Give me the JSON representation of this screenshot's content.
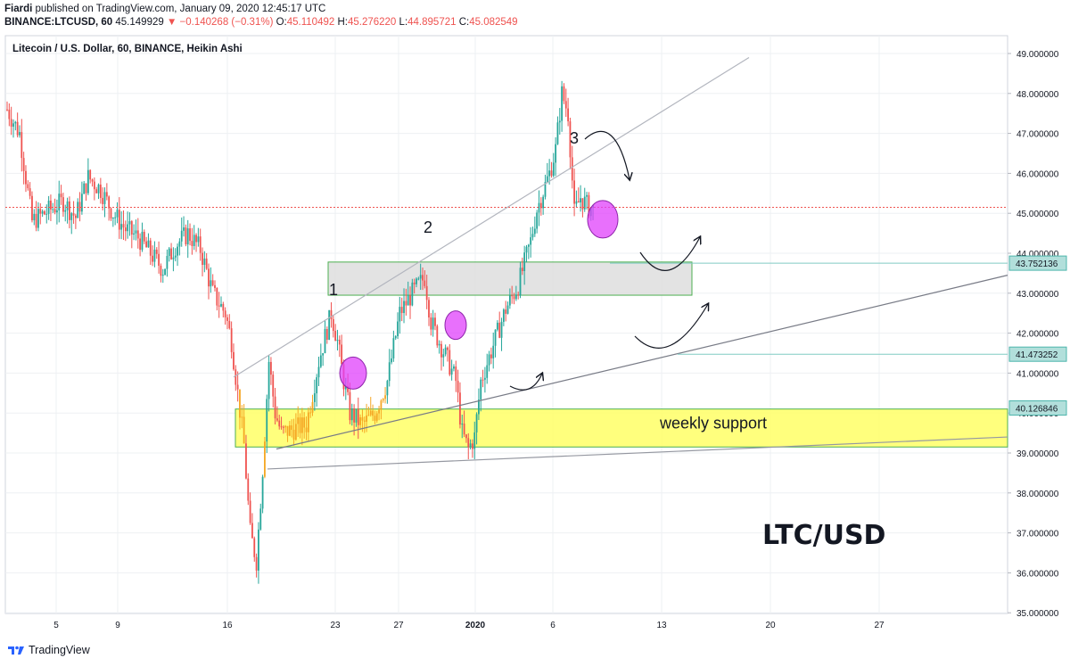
{
  "header": {
    "author": "Fiardi",
    "published_text": " published on TradingView.com, January 09, 2020 12:45:17 UTC",
    "symbol": "BINANCE:LTCUSD, 60",
    "last": "45.149929",
    "change": "▼ −0.140268 (−0.31%)",
    "o_label": "O:",
    "o": "45.110492",
    "h_label": "H:",
    "h": "45.276220",
    "l_label": "L:",
    "l": "44.895721",
    "c_label": "C:",
    "c": "45.082549"
  },
  "footer": {
    "brand": "TradingView",
    "logo_icon": "tradingview-logo-icon"
  },
  "chart_data": {
    "type": "candlestick",
    "title": "Litecoin / U.S. Dollar, 60, BINANCE, Heikin Ashi",
    "watermark": "LTC/USD",
    "ylim": [
      35.0,
      49.5
    ],
    "y_ticks": [
      "35.000000",
      "36.000000",
      "37.000000",
      "38.000000",
      "39.000000",
      "40.000000",
      "41.000000",
      "42.000000",
      "43.000000",
      "44.000000",
      "45.000000",
      "46.000000",
      "47.000000",
      "48.000000",
      "49.000000"
    ],
    "x_ticks": [
      "5",
      "9",
      "16",
      "23",
      "27",
      "2020",
      "6",
      "13",
      "20",
      "27"
    ],
    "price_labels": [
      {
        "value": 43.752136,
        "text": "43.752136"
      },
      {
        "value": 41.473252,
        "text": "41.473252"
      },
      {
        "value": 40.126846,
        "text": "40.126846"
      }
    ],
    "current_price": 45.15,
    "zones": [
      {
        "name": "weekly support",
        "low": 39.15,
        "high": 40.1,
        "color": "#ffff66"
      },
      {
        "name": "",
        "low": 42.95,
        "high": 43.78,
        "color": "#e0e0e0"
      }
    ],
    "annotations": [
      "1",
      "2",
      "3",
      "weekly support"
    ],
    "colors": {
      "up": "#26a69a",
      "down": "#ef5350",
      "support_candles": "#f5a623",
      "circle": "#e040fb",
      "zone": "#ffff66"
    },
    "series_close_path": [
      [
        0,
        47.6
      ],
      [
        2,
        47.0
      ],
      [
        4,
        44.8
      ],
      [
        6,
        45.0
      ],
      [
        9,
        45.3
      ],
      [
        11,
        44.9
      ],
      [
        13,
        45.9
      ],
      [
        15,
        45.6
      ],
      [
        17,
        45.0
      ],
      [
        19,
        44.6
      ],
      [
        21,
        44.4
      ],
      [
        23,
        44.0
      ],
      [
        25,
        43.6
      ],
      [
        27,
        44.2
      ],
      [
        29,
        44.5
      ],
      [
        31,
        44.1
      ],
      [
        33,
        43.0
      ],
      [
        35,
        42.5
      ],
      [
        36,
        41.8
      ],
      [
        37,
        40.5
      ],
      [
        38,
        39.2
      ],
      [
        39,
        37.0
      ],
      [
        40,
        36.3
      ],
      [
        41,
        38.6
      ],
      [
        42,
        41.3
      ],
      [
        43,
        40.0
      ],
      [
        44,
        39.5
      ],
      [
        46,
        39.6
      ],
      [
        48,
        39.7
      ],
      [
        50,
        41.3
      ],
      [
        52,
        42.5
      ],
      [
        53,
        41.8
      ],
      [
        54,
        40.8
      ],
      [
        55,
        40.0
      ],
      [
        57,
        39.7
      ],
      [
        59,
        40.0
      ],
      [
        61,
        40.8
      ],
      [
        63,
        42.5
      ],
      [
        65,
        43.0
      ],
      [
        67,
        43.4
      ],
      [
        68,
        42.3
      ],
      [
        69,
        41.9
      ],
      [
        71,
        41.2
      ],
      [
        72,
        40.8
      ],
      [
        73,
        39.5
      ],
      [
        74,
        39.1
      ],
      [
        75,
        39.4
      ],
      [
        76,
        40.8
      ],
      [
        78,
        41.7
      ],
      [
        80,
        42.6
      ],
      [
        82,
        43.2
      ],
      [
        84,
        44.3
      ],
      [
        85,
        45.1
      ],
      [
        87,
        46.0
      ],
      [
        88,
        46.6
      ],
      [
        89,
        48.0
      ],
      [
        90,
        47.5
      ],
      [
        91,
        45.0
      ],
      [
        92,
        45.4
      ],
      [
        93,
        45.2
      ],
      [
        94,
        45.1
      ]
    ]
  }
}
